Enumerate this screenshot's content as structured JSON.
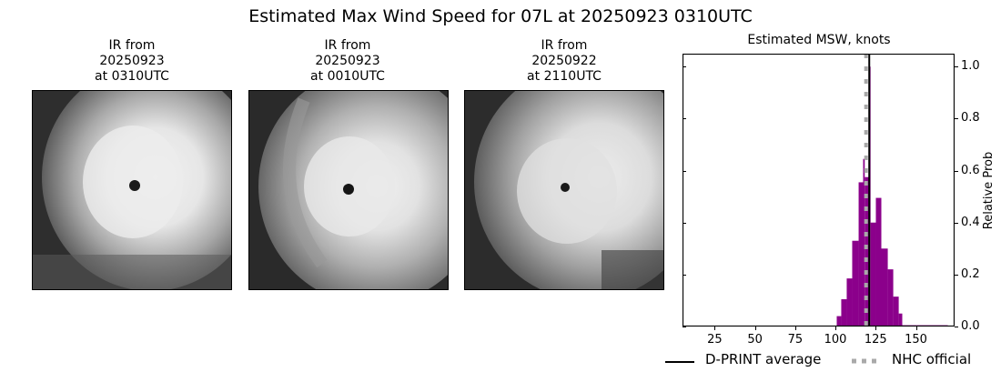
{
  "figure": {
    "suptitle": "Estimated Max Wind Speed for 07L at 20250923 0310UTC"
  },
  "ir_panels": [
    {
      "title_line1": "IR from",
      "title_line2": "20250923",
      "title_line3": "at 0310UTC"
    },
    {
      "title_line1": "IR from",
      "title_line2": "20250923",
      "title_line3": "at 0010UTC"
    },
    {
      "title_line1": "IR from",
      "title_line2": "20250922",
      "title_line3": "at 2110UTC"
    }
  ],
  "colors": {
    "histogram": "#8b008b",
    "dprint_line": "#000000",
    "nhc_line": "#a9a9a9"
  },
  "chart_data": {
    "type": "bar",
    "title": "Estimated MSW, knots",
    "xlabel": "",
    "ylabel": "Relative Prob",
    "xlim": [
      5,
      174
    ],
    "ylim": [
      0,
      1.05
    ],
    "x_ticks": [
      25,
      50,
      75,
      100,
      125,
      150
    ],
    "y_ticks": [
      "0.0",
      "0.2",
      "0.4",
      "0.6",
      "0.8",
      "1.0"
    ],
    "y_axis_position": "right",
    "grid": false,
    "bins": [
      {
        "left": 100.8,
        "right": 103.6,
        "value": 0.04
      },
      {
        "left": 103.6,
        "right": 107.0,
        "value": 0.105
      },
      {
        "left": 107.0,
        "right": 110.4,
        "value": 0.185
      },
      {
        "left": 110.4,
        "right": 114.4,
        "value": 0.33
      },
      {
        "left": 114.4,
        "right": 117.2,
        "value": 0.555
      },
      {
        "left": 117.2,
        "right": 118.2,
        "value": 0.645
      },
      {
        "left": 118.2,
        "right": 121.2,
        "value": 0.575
      },
      {
        "left": 121.2,
        "right": 121.8,
        "value": 1.0
      },
      {
        "left": 121.8,
        "right": 125.1,
        "value": 0.4
      },
      {
        "left": 125.1,
        "right": 128.5,
        "value": 0.495
      },
      {
        "left": 128.5,
        "right": 132.5,
        "value": 0.3
      },
      {
        "left": 132.5,
        "right": 135.9,
        "value": 0.22
      },
      {
        "left": 135.9,
        "right": 139.3,
        "value": 0.115
      },
      {
        "left": 139.3,
        "right": 141.5,
        "value": 0.05
      },
      {
        "left": 141.5,
        "right": 169.8,
        "value": 0.005
      }
    ],
    "vlines": [
      {
        "name": "D-PRINT average",
        "x": 121,
        "style": "solid",
        "color": "#000000"
      },
      {
        "name": "NHC official",
        "x": 119,
        "style": "dotted",
        "color": "#a9a9a9"
      }
    ],
    "legend": {
      "position": "below",
      "entries": [
        "D-PRINT average",
        "NHC official"
      ]
    }
  }
}
